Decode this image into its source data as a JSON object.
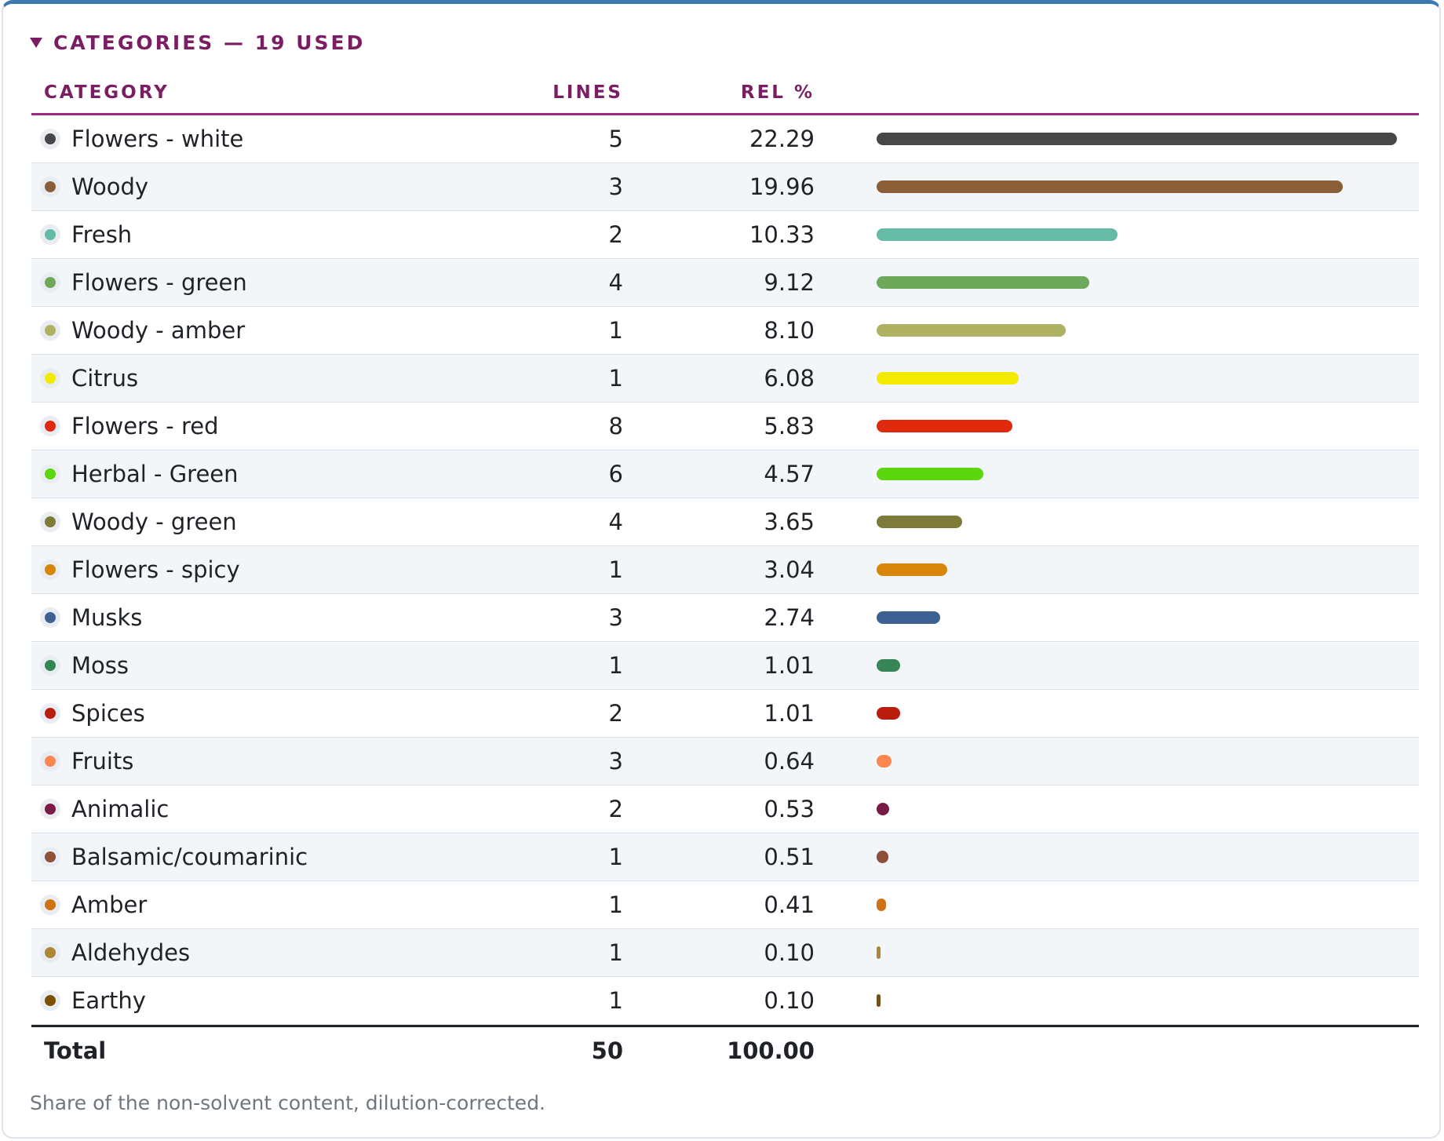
{
  "header": {
    "title": "CATEGORIES — 19 USED"
  },
  "table": {
    "columns": {
      "category": "CATEGORY",
      "lines": "LINES",
      "rel": "REL %"
    },
    "rows": [
      {
        "name": "Flowers - white",
        "lines": "5",
        "rel": "22.29",
        "value": 22.29,
        "color": "#474747"
      },
      {
        "name": "Woody",
        "lines": "3",
        "rel": "19.96",
        "value": 19.96,
        "color": "#8a5e37"
      },
      {
        "name": "Fresh",
        "lines": "2",
        "rel": "10.33",
        "value": 10.33,
        "color": "#65bba6"
      },
      {
        "name": "Flowers - green",
        "lines": "4",
        "rel": "9.12",
        "value": 9.12,
        "color": "#6ea85a"
      },
      {
        "name": "Woody - amber",
        "lines": "1",
        "rel": "8.10",
        "value": 8.1,
        "color": "#aeb262"
      },
      {
        "name": "Citrus",
        "lines": "1",
        "rel": "6.08",
        "value": 6.08,
        "color": "#f2ea00"
      },
      {
        "name": "Flowers - red",
        "lines": "8",
        "rel": "5.83",
        "value": 5.83,
        "color": "#df2a0e"
      },
      {
        "name": "Herbal - Green",
        "lines": "6",
        "rel": "4.57",
        "value": 4.57,
        "color": "#5cd60f"
      },
      {
        "name": "Woody - green",
        "lines": "4",
        "rel": "3.65",
        "value": 3.65,
        "color": "#7e7a3a"
      },
      {
        "name": "Flowers - spicy",
        "lines": "1",
        "rel": "3.04",
        "value": 3.04,
        "color": "#d78609"
      },
      {
        "name": "Musks",
        "lines": "3",
        "rel": "2.74",
        "value": 2.74,
        "color": "#3e6193"
      },
      {
        "name": "Moss",
        "lines": "1",
        "rel": "1.01",
        "value": 1.01,
        "color": "#358557"
      },
      {
        "name": "Spices",
        "lines": "2",
        "rel": "1.01",
        "value": 1.01,
        "color": "#b91d0e"
      },
      {
        "name": "Fruits",
        "lines": "3",
        "rel": "0.64",
        "value": 0.64,
        "color": "#fb8650"
      },
      {
        "name": "Animalic",
        "lines": "2",
        "rel": "0.53",
        "value": 0.53,
        "color": "#7a1a45"
      },
      {
        "name": "Balsamic/coumarinic",
        "lines": "1",
        "rel": "0.51",
        "value": 0.51,
        "color": "#8d503b"
      },
      {
        "name": "Amber",
        "lines": "1",
        "rel": "0.41",
        "value": 0.41,
        "color": "#ce7416"
      },
      {
        "name": "Aldehydes",
        "lines": "1",
        "rel": "0.10",
        "value": 0.1,
        "color": "#ae8638"
      },
      {
        "name": "Earthy",
        "lines": "1",
        "rel": "0.10",
        "value": 0.1,
        "color": "#7b5004"
      }
    ],
    "total": {
      "label": "Total",
      "lines": "50",
      "rel": "100.00"
    }
  },
  "footnote": "Share of the non-solvent content, dilution-corrected.",
  "colors": {
    "accent": "#7b1d63",
    "header_rule": "#9c2a7f",
    "top_border": "#3d78b0",
    "alt_row": "#f3f6f9"
  }
}
